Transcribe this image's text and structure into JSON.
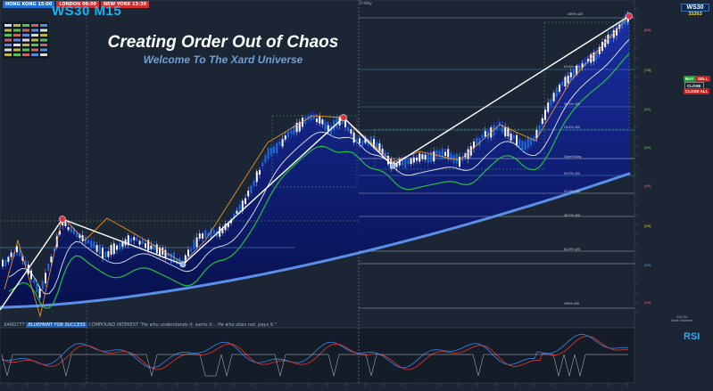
{
  "sessions": [
    {
      "label": "HONG KONG 15:00",
      "bg": "#1f6fd1"
    },
    {
      "label": "LONDON 09:00",
      "bg": "#d12f2f"
    },
    {
      "label": "NEW YORK 13:30",
      "bg": "#d12f2f"
    }
  ],
  "chart": {
    "symbol_title": "WS30 M15",
    "headline": "Creating Order Out of Chaos",
    "subheadline": "Welcome To The Xard Universe",
    "day_label": "Friday",
    "indicator_label": "RSI",
    "footer_prefix": "XARD777",
    "footer_highlight": "BLUEPRINT FOR SUCCESS",
    "footer_rest": "COMPOUND INTEREST \"He who understands it, earns it... He who does not, pays it.\""
  },
  "right_panel": {
    "symbol": "WS30",
    "price": "33263",
    "buttons": [
      {
        "label": "BUY",
        "bg": "#1d9a2e"
      },
      {
        "label": "SELL",
        "bg": "#c42020"
      },
      {
        "label": "CLOSE",
        "bg": "#1b2533"
      },
      {
        "label": "CLOSE ALL",
        "bg": "#c42020"
      }
    ],
    "footer_date": "202-04",
    "footer_name": "Xard Universe",
    "bottom_levels": [
      "[1/8]",
      "[0/8]",
      "-1/8"
    ]
  },
  "levels": {
    "fib": [
      "100% 420",
      "61.8% 420",
      "38.2% 420",
      "23.6% 420",
      "00.0% 420",
      "23.6% 420",
      "38.2% 420",
      "50.0% 420",
      "61.8% 420",
      "100% 420"
    ],
    "murrey": [
      "[8/8]",
      "[7/8]",
      "[6/8]",
      "[5/8]",
      "[4/8]",
      "[3/8]",
      "[2/8]",
      "[1/8]",
      "[0/8]",
      "[-1/8]"
    ],
    "open_today": "OpenToday"
  },
  "colors": {
    "background": "#1b2533",
    "fill_main": "#0a1468",
    "ma_light": "#5b8ee6",
    "ma_green": "#23c03c",
    "zigzag": "#ff9f1a",
    "structure": "#ffffff",
    "bull": "#ffffff",
    "bear": "#1e6ed6"
  }
}
